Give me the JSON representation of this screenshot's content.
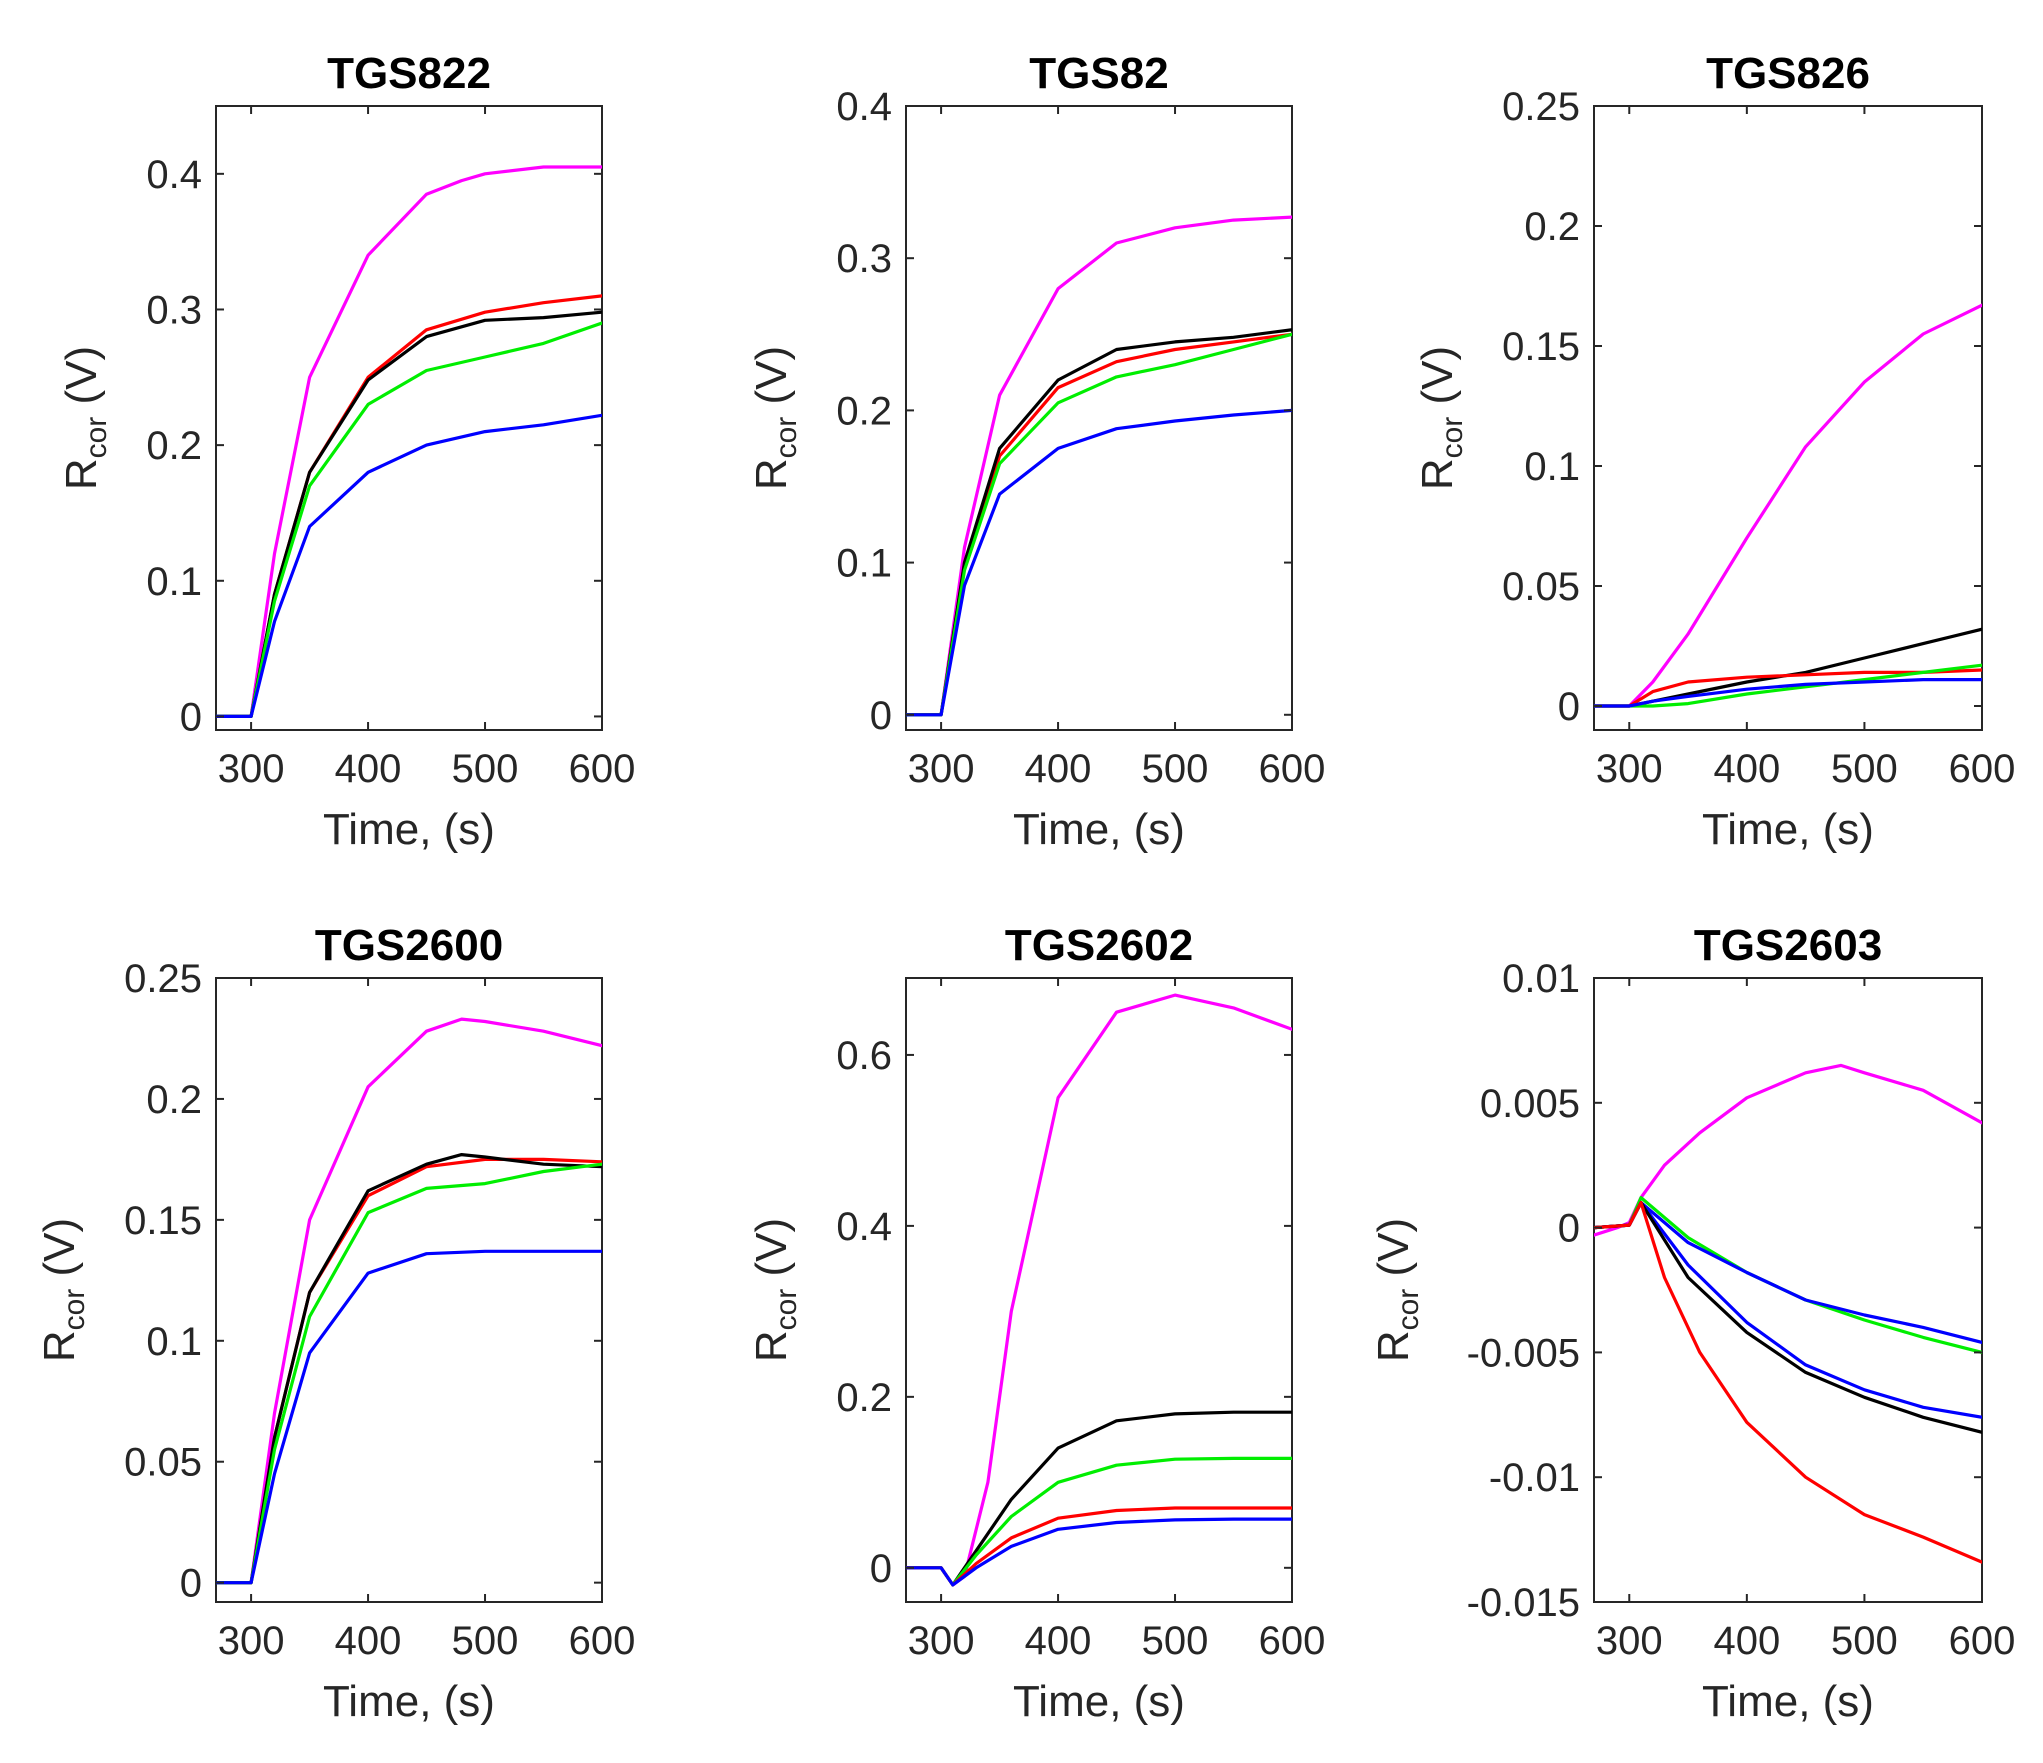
{
  "colors": {
    "magenta": "#ff00ff",
    "red": "#ff0000",
    "black": "#000000",
    "green": "#00ee00",
    "blue": "#0000ff",
    "axis": "#262626"
  },
  "chart_data": [
    {
      "type": "line",
      "title": "TGS822",
      "xlabel": "Time, (s)",
      "ylabel": {
        "main": "R",
        "sub": "cor",
        "unit": " (V)"
      },
      "xlim": [
        270,
        600
      ],
      "ylim": [
        -0.01,
        0.45
      ],
      "xticks": [
        300,
        400,
        500,
        600
      ],
      "xtick_labels": [
        "300",
        "400",
        "500",
        "600"
      ],
      "yticks": [
        0,
        0.1,
        0.2,
        0.3,
        0.4
      ],
      "ytick_labels": [
        "0",
        "0.1",
        "0.2",
        "0.3",
        "0.4"
      ],
      "series": [
        {
          "name": "magenta",
          "color": "#ff00ff",
          "x": [
            270,
            300,
            320,
            350,
            400,
            450,
            480,
            500,
            550,
            600
          ],
          "y": [
            0,
            0,
            0.12,
            0.25,
            0.34,
            0.385,
            0.395,
            0.4,
            0.405,
            0.405
          ]
        },
        {
          "name": "red",
          "color": "#ff0000",
          "x": [
            270,
            300,
            320,
            350,
            400,
            450,
            500,
            550,
            600
          ],
          "y": [
            0,
            0,
            0.09,
            0.18,
            0.25,
            0.285,
            0.298,
            0.305,
            0.31
          ]
        },
        {
          "name": "black",
          "color": "#000000",
          "x": [
            270,
            300,
            320,
            350,
            400,
            450,
            500,
            550,
            600
          ],
          "y": [
            0,
            0,
            0.09,
            0.18,
            0.248,
            0.28,
            0.292,
            0.294,
            0.298
          ]
        },
        {
          "name": "green",
          "color": "#00ee00",
          "x": [
            270,
            300,
            320,
            350,
            400,
            450,
            500,
            550,
            600
          ],
          "y": [
            0,
            0,
            0.085,
            0.17,
            0.23,
            0.255,
            0.265,
            0.275,
            0.29
          ]
        },
        {
          "name": "blue",
          "color": "#0000ff",
          "x": [
            270,
            300,
            320,
            350,
            400,
            450,
            500,
            550,
            600
          ],
          "y": [
            0,
            0,
            0.07,
            0.14,
            0.18,
            0.2,
            0.21,
            0.215,
            0.222
          ]
        }
      ]
    },
    {
      "type": "line",
      "title": "TGS82",
      "xlabel": "Time, (s)",
      "ylabel": {
        "main": "R",
        "sub": "cor",
        "unit": " (V)"
      },
      "xlim": [
        270,
        600
      ],
      "ylim": [
        -0.01,
        0.4
      ],
      "xticks": [
        300,
        400,
        500,
        600
      ],
      "xtick_labels": [
        "300",
        "400",
        "500",
        "600"
      ],
      "yticks": [
        0,
        0.1,
        0.2,
        0.3,
        0.4
      ],
      "ytick_labels": [
        "0",
        "0.1",
        "0.2",
        "0.3",
        "0.4"
      ],
      "series": [
        {
          "name": "magenta",
          "color": "#ff00ff",
          "x": [
            270,
            300,
            320,
            350,
            400,
            450,
            500,
            550,
            600
          ],
          "y": [
            0,
            0,
            0.11,
            0.21,
            0.28,
            0.31,
            0.32,
            0.325,
            0.327
          ]
        },
        {
          "name": "red",
          "color": "#ff0000",
          "x": [
            270,
            300,
            320,
            350,
            400,
            450,
            500,
            550,
            600
          ],
          "y": [
            0,
            0,
            0.1,
            0.17,
            0.215,
            0.232,
            0.24,
            0.245,
            0.25
          ]
        },
        {
          "name": "black",
          "color": "#000000",
          "x": [
            270,
            300,
            320,
            350,
            400,
            450,
            500,
            550,
            600
          ],
          "y": [
            0,
            0,
            0.1,
            0.175,
            0.22,
            0.24,
            0.245,
            0.248,
            0.253
          ]
        },
        {
          "name": "green",
          "color": "#00ee00",
          "x": [
            270,
            300,
            320,
            350,
            400,
            450,
            500,
            550,
            600
          ],
          "y": [
            0,
            0,
            0.095,
            0.165,
            0.205,
            0.222,
            0.23,
            0.24,
            0.25
          ]
        },
        {
          "name": "blue",
          "color": "#0000ff",
          "x": [
            270,
            300,
            320,
            350,
            400,
            450,
            500,
            550,
            600
          ],
          "y": [
            0,
            0,
            0.085,
            0.145,
            0.175,
            0.188,
            0.193,
            0.197,
            0.2
          ]
        }
      ]
    },
    {
      "type": "line",
      "title": "TGS826",
      "xlabel": "Time, (s)",
      "ylabel": {
        "main": "R",
        "sub": "cor",
        "unit": " (V)"
      },
      "xlim": [
        270,
        600
      ],
      "ylim": [
        -0.01,
        0.25
      ],
      "xticks": [
        300,
        400,
        500,
        600
      ],
      "xtick_labels": [
        "300",
        "400",
        "500",
        "600"
      ],
      "yticks": [
        0,
        0.05,
        0.1,
        0.15,
        0.2,
        0.25
      ],
      "ytick_labels": [
        "0",
        "0.05",
        "0.1",
        "0.15",
        "0.2",
        "0.25"
      ],
      "series": [
        {
          "name": "magenta",
          "color": "#ff00ff",
          "x": [
            270,
            300,
            320,
            350,
            400,
            450,
            500,
            550,
            600
          ],
          "y": [
            0,
            0,
            0.01,
            0.03,
            0.07,
            0.108,
            0.135,
            0.155,
            0.167
          ]
        },
        {
          "name": "black",
          "color": "#000000",
          "x": [
            270,
            300,
            320,
            350,
            400,
            450,
            500,
            550,
            600
          ],
          "y": [
            0,
            0,
            0.002,
            0.005,
            0.01,
            0.014,
            0.02,
            0.026,
            0.032
          ]
        },
        {
          "name": "red",
          "color": "#ff0000",
          "x": [
            270,
            300,
            320,
            350,
            400,
            450,
            500,
            550,
            600
          ],
          "y": [
            0,
            0,
            0.006,
            0.01,
            0.012,
            0.013,
            0.014,
            0.014,
            0.015
          ]
        },
        {
          "name": "green",
          "color": "#00ee00",
          "x": [
            270,
            300,
            320,
            350,
            400,
            450,
            500,
            550,
            600
          ],
          "y": [
            0,
            0,
            0,
            0.001,
            0.005,
            0.008,
            0.011,
            0.014,
            0.017
          ]
        },
        {
          "name": "blue",
          "color": "#0000ff",
          "x": [
            270,
            300,
            320,
            350,
            400,
            450,
            500,
            550,
            600
          ],
          "y": [
            0,
            0,
            0.002,
            0.004,
            0.007,
            0.009,
            0.01,
            0.011,
            0.011
          ]
        }
      ]
    },
    {
      "type": "line",
      "title": "TGS2600",
      "xlabel": "Time, (s)",
      "ylabel": {
        "main": "R",
        "sub": "cor",
        "unit": " (V)"
      },
      "xlim": [
        270,
        600
      ],
      "ylim": [
        -0.008,
        0.25
      ],
      "xticks": [
        300,
        400,
        500,
        600
      ],
      "xtick_labels": [
        "300",
        "400",
        "500",
        "600"
      ],
      "yticks": [
        0,
        0.05,
        0.1,
        0.15,
        0.2,
        0.25
      ],
      "ytick_labels": [
        "0",
        "0.05",
        "0.1",
        "0.15",
        "0.2",
        "0.25"
      ],
      "series": [
        {
          "name": "magenta",
          "color": "#ff00ff",
          "x": [
            270,
            300,
            320,
            350,
            400,
            450,
            480,
            500,
            550,
            600
          ],
          "y": [
            0,
            0,
            0.07,
            0.15,
            0.205,
            0.228,
            0.233,
            0.232,
            0.228,
            0.222
          ]
        },
        {
          "name": "red",
          "color": "#ff0000",
          "x": [
            270,
            300,
            320,
            350,
            400,
            450,
            500,
            550,
            600
          ],
          "y": [
            0,
            0,
            0.06,
            0.12,
            0.16,
            0.172,
            0.175,
            0.175,
            0.174
          ]
        },
        {
          "name": "black",
          "color": "#000000",
          "x": [
            270,
            300,
            320,
            350,
            400,
            450,
            480,
            500,
            550,
            600
          ],
          "y": [
            0,
            0,
            0.06,
            0.12,
            0.162,
            0.173,
            0.177,
            0.176,
            0.173,
            0.172
          ]
        },
        {
          "name": "green",
          "color": "#00ee00",
          "x": [
            270,
            300,
            320,
            350,
            400,
            450,
            500,
            550,
            600
          ],
          "y": [
            0,
            0,
            0.055,
            0.11,
            0.153,
            0.163,
            0.165,
            0.17,
            0.173
          ]
        },
        {
          "name": "blue",
          "color": "#0000ff",
          "x": [
            270,
            300,
            320,
            350,
            400,
            450,
            500,
            550,
            600
          ],
          "y": [
            0,
            0,
            0.045,
            0.095,
            0.128,
            0.136,
            0.137,
            0.137,
            0.137
          ]
        }
      ]
    },
    {
      "type": "line",
      "title": "TGS2602",
      "xlabel": "Time, (s)",
      "ylabel": {
        "main": "R",
        "sub": "cor",
        "unit": " (V)"
      },
      "xlim": [
        270,
        600
      ],
      "ylim": [
        -0.04,
        0.69
      ],
      "xticks": [
        300,
        400,
        500,
        600
      ],
      "xtick_labels": [
        "300",
        "400",
        "500",
        "600"
      ],
      "yticks": [
        0,
        0.2,
        0.4,
        0.6
      ],
      "ytick_labels": [
        "0",
        "0.2",
        "0.4",
        "0.6"
      ],
      "series": [
        {
          "name": "magenta",
          "color": "#ff00ff",
          "x": [
            270,
            300,
            310,
            320,
            340,
            360,
            400,
            450,
            500,
            550,
            600
          ],
          "y": [
            0,
            0,
            -0.02,
            -0.01,
            0.1,
            0.3,
            0.55,
            0.65,
            0.67,
            0.655,
            0.63
          ]
        },
        {
          "name": "black",
          "color": "#000000",
          "x": [
            270,
            300,
            310,
            330,
            360,
            400,
            450,
            500,
            550,
            600
          ],
          "y": [
            0,
            0,
            -0.02,
            0.02,
            0.08,
            0.14,
            0.172,
            0.18,
            0.182,
            0.182
          ]
        },
        {
          "name": "green",
          "color": "#00ee00",
          "x": [
            270,
            300,
            310,
            330,
            360,
            400,
            450,
            500,
            550,
            600
          ],
          "y": [
            0,
            0,
            -0.02,
            0.015,
            0.06,
            0.1,
            0.12,
            0.127,
            0.128,
            0.128
          ]
        },
        {
          "name": "red",
          "color": "#ff0000",
          "x": [
            270,
            300,
            310,
            330,
            360,
            400,
            450,
            500,
            550,
            600
          ],
          "y": [
            0,
            0,
            -0.02,
            0.005,
            0.035,
            0.058,
            0.067,
            0.07,
            0.07,
            0.07
          ]
        },
        {
          "name": "blue",
          "color": "#0000ff",
          "x": [
            270,
            300,
            310,
            330,
            360,
            400,
            450,
            500,
            550,
            600
          ],
          "y": [
            0,
            0,
            -0.02,
            0.0,
            0.025,
            0.045,
            0.053,
            0.056,
            0.057,
            0.057
          ]
        }
      ]
    },
    {
      "type": "line",
      "title": "TGS2603",
      "xlabel": "Time, (s)",
      "ylabel": {
        "main": "R",
        "sub": "cor",
        "unit": " (V)"
      },
      "xlim": [
        270,
        600
      ],
      "ylim": [
        -0.015,
        0.01
      ],
      "xticks": [
        300,
        400,
        500,
        600
      ],
      "xtick_labels": [
        "300",
        "400",
        "500",
        "600"
      ],
      "yticks": [
        -0.015,
        -0.01,
        -0.005,
        0,
        0.005,
        0.01
      ],
      "ytick_labels": [
        "-0.015",
        "-0.01",
        "-0.005",
        "0",
        "0.005",
        "0.01"
      ],
      "series": [
        {
          "name": "magenta",
          "color": "#ff00ff",
          "x": [
            270,
            290,
            300,
            310,
            330,
            360,
            400,
            450,
            480,
            500,
            550,
            600
          ],
          "y": [
            -0.0003,
            0,
            0.0002,
            0.0012,
            0.0025,
            0.0038,
            0.0052,
            0.0062,
            0.0065,
            0.0062,
            0.0055,
            0.0042
          ]
        },
        {
          "name": "green",
          "color": "#00ee00",
          "x": [
            270,
            300,
            310,
            350,
            400,
            450,
            500,
            550,
            600
          ],
          "y": [
            0,
            0.0001,
            0.0012,
            -0.0004,
            -0.0018,
            -0.0029,
            -0.0037,
            -0.0044,
            -0.005
          ]
        },
        {
          "name": "blue",
          "color": "#0000ff",
          "x": [
            270,
            300,
            310,
            350,
            400,
            450,
            500,
            550,
            600
          ],
          "y": [
            0,
            0.0001,
            0.001,
            -0.0006,
            -0.0018,
            -0.0029,
            -0.0035,
            -0.004,
            -0.0046
          ]
        },
        {
          "name": "blue",
          "color": "#0000ff",
          "x": [
            270,
            300,
            310,
            350,
            400,
            450,
            500,
            550,
            600
          ],
          "y": [
            0,
            0.0001,
            0.001,
            -0.0015,
            -0.0038,
            -0.0055,
            -0.0065,
            -0.0072,
            -0.0076
          ]
        },
        {
          "name": "black",
          "color": "#000000",
          "x": [
            270,
            300,
            310,
            350,
            400,
            450,
            500,
            550,
            600
          ],
          "y": [
            0,
            0.0001,
            0.001,
            -0.002,
            -0.0042,
            -0.0058,
            -0.0068,
            -0.0076,
            -0.0082
          ]
        },
        {
          "name": "red",
          "color": "#ff0000",
          "x": [
            270,
            300,
            310,
            330,
            360,
            400,
            450,
            500,
            550,
            600
          ],
          "y": [
            0,
            0.0001,
            0.001,
            -0.002,
            -0.005,
            -0.0078,
            -0.01,
            -0.0115,
            -0.0124,
            -0.0134
          ]
        }
      ]
    }
  ]
}
